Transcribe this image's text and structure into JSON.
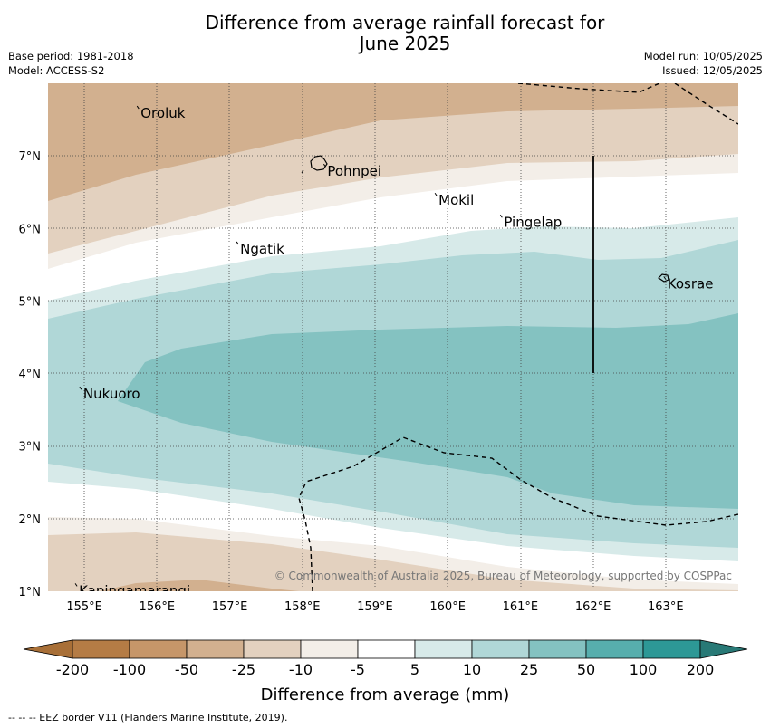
{
  "title_line1": "Difference from average rainfall forecast for",
  "title_line2": "June 2025",
  "base_period": "Base period: 1981-2018",
  "model": "Model: ACCESS-S2",
  "model_run": "Model run: 10/05/2025",
  "issued": "Issued: 12/05/2025",
  "copyright": "© Commonwealth of Australia 2025, Bureau of Meteorology, supported by COSPPac",
  "footer": "--  --  -- EEZ border V11 (Flanders Marine Institute, 2019).",
  "lat_ticks": [
    "1°N",
    "2°N",
    "3°N",
    "4°N",
    "5°N",
    "6°N",
    "7°N"
  ],
  "lon_ticks": [
    "155°E",
    "156°E",
    "157°E",
    "158°E",
    "159°E",
    "160°E",
    "161°E",
    "162°E",
    "163°E"
  ],
  "places": [
    {
      "name": "Oroluk",
      "lon": 155.75,
      "lat": 7.65
    },
    {
      "name": "Pohnpei",
      "lon": 158.32,
      "lat": 6.85
    },
    {
      "name": "Mokil",
      "lon": 159.85,
      "lat": 6.45
    },
    {
      "name": "Pingelap",
      "lon": 160.75,
      "lat": 6.15
    },
    {
      "name": "Ngatik",
      "lon": 157.12,
      "lat": 5.78
    },
    {
      "name": "Kosrae",
      "lon": 163.0,
      "lat": 5.3
    },
    {
      "name": "Nukuoro",
      "lon": 154.96,
      "lat": 3.78
    },
    {
      "name": "Kapingamarangi",
      "lon": 154.9,
      "lat": 1.07
    }
  ],
  "colorbar": {
    "label": "Difference from average (mm)",
    "ticks": [
      "-200",
      "-100",
      "-50",
      "-25",
      "-10",
      "-5",
      "5",
      "10",
      "25",
      "50",
      "100",
      "200"
    ],
    "colors": [
      "#a86f37",
      "#b57c45",
      "#c69669",
      "#d2b08f",
      "#e3d1bf",
      "#f3eee8",
      "#ffffff",
      "#d7eae9",
      "#b0d7d7",
      "#84c2c1",
      "#57aead",
      "#2d9896",
      "#287976"
    ]
  },
  "legend_colors": {
    "neg200_100": "#b57c45",
    "neg100_50": "#c69669",
    "neg50_25": "#d2b08f",
    "neg25_10": "#e3d1bf",
    "neg10_5": "#f3eee8",
    "pos5_10": "#d7eae9",
    "pos10_25": "#b0d7d7",
    "pos25_50": "#84c2c1"
  }
}
